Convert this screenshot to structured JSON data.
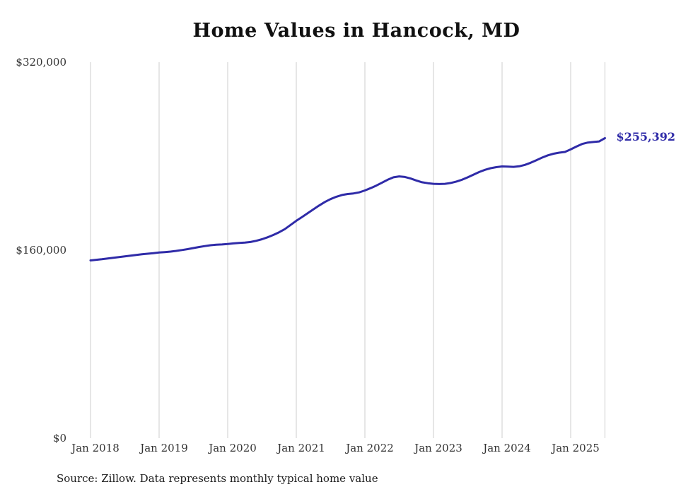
{
  "chart_data": {
    "type": "line",
    "title": "Home Values in Hancock, MD",
    "source": "Source: Zillow. Data represents monthly typical home value",
    "end_label": "$255,392",
    "end_value": 255392,
    "x_unit": "month",
    "x_start": "2018-01",
    "x_end": "2025-07",
    "x_tick_labels": [
      "Jan 2018",
      "Jan 2019",
      "Jan 2020",
      "Jan 2021",
      "Jan 2022",
      "Jan 2023",
      "Jan 2024",
      "Jan 2025"
    ],
    "y_ticks": [
      {
        "label": "$0",
        "value": 0
      },
      {
        "label": "$160,000",
        "value": 160000
      },
      {
        "label": "$320,000",
        "value": 320000
      }
    ],
    "ylim": [
      0,
      320000
    ],
    "grid": "vertical-only",
    "legend": "none",
    "line_color": "#2f2ba8",
    "grid_color": "#cccccc",
    "values": [
      151300,
      151800,
      152300,
      152900,
      153500,
      154100,
      154700,
      155300,
      155900,
      156500,
      157000,
      157500,
      158000,
      158400,
      158800,
      159400,
      160100,
      160900,
      161800,
      162700,
      163500,
      164200,
      164700,
      164900,
      165300,
      165800,
      166200,
      166500,
      167000,
      168000,
      169300,
      171000,
      173000,
      175300,
      177900,
      181500,
      185000,
      188200,
      191500,
      194800,
      198000,
      201000,
      203500,
      205500,
      207000,
      207800,
      208300,
      209200,
      210800,
      212800,
      215000,
      217500,
      220000,
      222000,
      222800,
      222300,
      221000,
      219300,
      217800,
      217000,
      216500,
      216300,
      216500,
      217200,
      218400,
      220000,
      222000,
      224300,
      226500,
      228400,
      229800,
      230700,
      231300,
      231100,
      230900,
      231400,
      232600,
      234400,
      236600,
      238800,
      240700,
      242100,
      243000,
      243600,
      245800,
      248200,
      250400,
      251600,
      252100,
      252600,
      255392
    ]
  }
}
